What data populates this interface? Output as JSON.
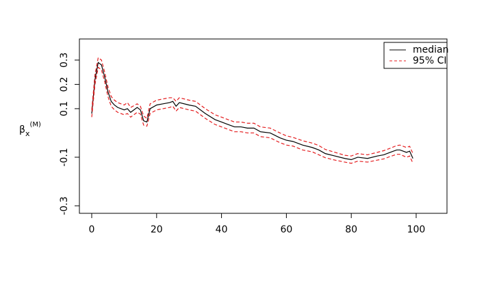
{
  "chart_data": {
    "type": "line",
    "ylabel": {
      "base": "β",
      "sub": "x",
      "sup": "(M)"
    },
    "x": [
      0,
      1,
      2,
      3,
      4,
      5,
      6,
      7,
      8,
      10,
      11,
      12,
      14,
      15,
      16,
      17,
      18,
      20,
      22,
      24,
      25,
      26,
      27,
      30,
      32,
      35,
      38,
      40,
      42,
      44,
      46,
      48,
      50,
      52,
      55,
      58,
      60,
      62,
      65,
      68,
      70,
      72,
      75,
      78,
      80,
      82,
      85,
      88,
      90,
      92,
      94,
      95,
      97,
      98,
      99
    ],
    "series": [
      {
        "name": "median",
        "color": "#000000",
        "dash": false,
        "values": [
          0.08,
          0.22,
          0.29,
          0.28,
          0.23,
          0.17,
          0.13,
          0.115,
          0.105,
          0.095,
          0.1,
          0.085,
          0.105,
          0.095,
          0.05,
          0.045,
          0.1,
          0.115,
          0.12,
          0.125,
          0.13,
          0.11,
          0.125,
          0.115,
          0.11,
          0.08,
          0.055,
          0.045,
          0.035,
          0.025,
          0.025,
          0.02,
          0.02,
          0.005,
          0,
          -0.02,
          -0.03,
          -0.035,
          -0.05,
          -0.06,
          -0.07,
          -0.085,
          -0.095,
          -0.105,
          -0.11,
          -0.1,
          -0.105,
          -0.095,
          -0.09,
          -0.08,
          -0.07,
          -0.07,
          -0.08,
          -0.075,
          -0.105
        ]
      },
      {
        "name": "95% CI",
        "color": "#e41a1c",
        "dash": true,
        "upper": [
          0.095,
          0.24,
          0.31,
          0.3,
          0.25,
          0.19,
          0.15,
          0.135,
          0.125,
          0.115,
          0.125,
          0.105,
          0.12,
          0.11,
          0.07,
          0.06,
          0.12,
          0.135,
          0.14,
          0.145,
          0.145,
          0.13,
          0.145,
          0.135,
          0.13,
          0.1,
          0.075,
          0.065,
          0.055,
          0.045,
          0.045,
          0.04,
          0.04,
          0.025,
          0.02,
          0,
          -0.012,
          -0.018,
          -0.032,
          -0.042,
          -0.052,
          -0.068,
          -0.08,
          -0.092,
          -0.095,
          -0.085,
          -0.09,
          -0.08,
          -0.073,
          -0.063,
          -0.052,
          -0.05,
          -0.06,
          -0.055,
          -0.085
        ],
        "lower": [
          0.065,
          0.2,
          0.27,
          0.26,
          0.21,
          0.15,
          0.11,
          0.095,
          0.085,
          0.075,
          0.08,
          0.065,
          0.085,
          0.078,
          0.032,
          0.028,
          0.08,
          0.095,
          0.1,
          0.105,
          0.11,
          0.09,
          0.105,
          0.095,
          0.09,
          0.06,
          0.035,
          0.025,
          0.015,
          0.005,
          0.005,
          0,
          0,
          -0.015,
          -0.02,
          -0.04,
          -0.05,
          -0.054,
          -0.07,
          -0.078,
          -0.09,
          -0.102,
          -0.112,
          -0.12,
          -0.125,
          -0.116,
          -0.12,
          -0.112,
          -0.107,
          -0.097,
          -0.088,
          -0.088,
          -0.1,
          -0.095,
          -0.125
        ]
      }
    ],
    "xlim": [
      -3.8,
      109.5
    ],
    "ylim": [
      -0.331,
      0.387
    ],
    "xticks": [
      0,
      20,
      40,
      60,
      80,
      100
    ],
    "yticks": [
      0.3,
      0.2,
      0.1,
      -0.1,
      -0.3
    ],
    "legend": "top-right"
  }
}
